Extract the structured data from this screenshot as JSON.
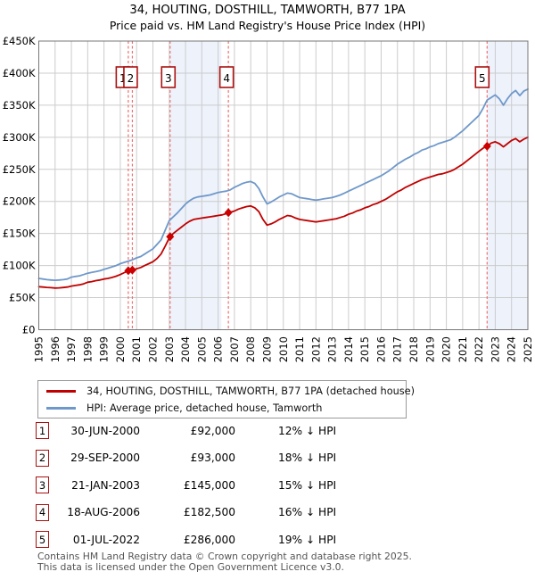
{
  "title": "34, HOUTING, DOSTHILL, TAMWORTH, B77 1PA",
  "subtitle": "Price paid vs. HM Land Registry's House Price Index (HPI)",
  "colors": {
    "property_line": "#c00000",
    "hpi_line": "#6f98ca",
    "event_dash": "#ee7070",
    "event_box_border": "#aa1111",
    "marker": "#cc0000",
    "band": "#edf2fb",
    "grid": "#cccccc",
    "plot_border": "#777777"
  },
  "chart_data": {
    "type": "line",
    "title": "34, HOUTING, DOSTHILL, TAMWORTH, B77 1PA — Price paid vs. HPI",
    "xlim": [
      1995,
      2025
    ],
    "ylim": [
      0,
      450000
    ],
    "x_start": 1995,
    "x_step_years": 0.25,
    "x_ticks": [
      1995,
      1996,
      1997,
      1998,
      1999,
      2000,
      2001,
      2002,
      2003,
      2004,
      2005,
      2006,
      2007,
      2008,
      2009,
      2010,
      2011,
      2012,
      2013,
      2014,
      2015,
      2016,
      2017,
      2018,
      2019,
      2020,
      2021,
      2022,
      2023,
      2024,
      2025
    ],
    "y_ticks": [
      "£450K",
      "£400K",
      "£350K",
      "£300K",
      "£250K",
      "£200K",
      "£150K",
      "£100K",
      "£50K",
      "£0"
    ],
    "grid": true,
    "legend_position": "below",
    "shaded_bands_years": [
      [
        2003.055,
        2006.2
      ],
      [
        2022.5,
        2025
      ]
    ],
    "series": [
      {
        "name": "34, HOUTING, DOSTHILL, TAMWORTH, B77 1PA (detached house)",
        "color": "#c00000",
        "values_k_gbp": [
          67,
          66.5,
          66,
          65.5,
          65,
          65.3,
          65.8,
          66.5,
          68,
          69,
          70,
          71.5,
          74,
          75,
          76.5,
          77.5,
          79,
          80,
          81.5,
          83.5,
          86,
          89,
          92,
          93,
          95,
          97,
          100,
          103,
          106,
          111,
          118,
          130,
          143,
          150,
          155,
          160,
          165,
          169,
          172,
          173,
          174,
          175,
          176,
          177,
          178,
          179,
          181,
          183,
          185,
          188,
          190,
          192,
          193,
          190,
          184,
          172,
          163,
          165,
          168,
          172,
          175,
          178,
          177,
          174,
          172,
          171,
          170,
          169,
          168,
          169,
          170,
          171,
          172,
          173,
          175,
          177,
          180,
          182,
          185,
          187,
          190,
          192,
          195,
          197,
          200,
          203,
          207,
          211,
          215,
          218,
          222,
          225,
          228,
          231,
          234,
          236,
          238,
          240,
          242,
          243,
          245,
          247,
          250,
          254,
          258,
          263,
          268,
          273,
          278,
          283,
          286,
          291,
          293,
          290,
          285,
          290,
          295,
          298,
          293,
          297,
          300
        ]
      },
      {
        "name": "HPI: Average price, detached house, Tamworth",
        "color": "#6f98ca",
        "values_k_gbp": [
          80,
          79,
          78,
          77.5,
          77,
          77.5,
          78,
          79,
          82,
          83,
          84,
          86,
          88,
          89.5,
          90.5,
          92,
          94,
          96,
          98,
          100,
          103,
          105,
          107,
          109,
          112,
          114,
          118,
          122,
          126,
          133,
          140,
          155,
          170,
          176,
          182,
          189,
          196,
          201,
          205,
          207,
          208,
          209,
          210,
          212,
          214,
          215,
          216,
          218,
          222,
          225,
          228,
          230,
          231,
          228,
          220,
          207,
          196,
          199,
          203,
          207,
          210,
          213,
          212,
          209,
          206,
          205,
          204,
          203,
          202,
          203,
          204,
          205,
          206,
          208,
          210,
          213,
          216,
          219,
          222,
          225,
          228,
          231,
          234,
          237,
          240,
          244,
          248,
          253,
          258,
          262,
          266,
          269,
          273,
          276,
          280,
          282,
          285,
          287,
          290,
          292,
          294,
          296,
          300,
          305,
          310,
          316,
          322,
          328,
          334,
          345,
          358,
          362,
          366,
          360,
          350,
          360,
          368,
          373,
          365,
          372,
          375
        ]
      }
    ],
    "events": [
      {
        "number": "1",
        "date": "30-JUN-2000",
        "year": 2000.49,
        "price": "£92,000",
        "price_k": 92,
        "vs_hpi": "12% ↓ HPI"
      },
      {
        "number": "2",
        "date": "29-SEP-2000",
        "year": 2000.74,
        "price": "£93,000",
        "price_k": 93,
        "vs_hpi": "18% ↓ HPI"
      },
      {
        "number": "3",
        "date": "21-JAN-2003",
        "year": 2003.055,
        "price": "£145,000",
        "price_k": 145,
        "vs_hpi": "15% ↓ HPI"
      },
      {
        "number": "4",
        "date": "18-AUG-2006",
        "year": 2006.63,
        "price": "£182,500",
        "price_k": 182.5,
        "vs_hpi": "16% ↓ HPI"
      },
      {
        "number": "5",
        "date": "01-JUL-2022",
        "year": 2022.5,
        "price": "£286,000",
        "price_k": 286,
        "vs_hpi": "19% ↓ HPI"
      }
    ]
  },
  "legend": {
    "items": [
      {
        "label": "34, HOUTING, DOSTHILL, TAMWORTH, B77 1PA (detached house)",
        "color": "#c00000"
      },
      {
        "label": "HPI: Average price, detached house, Tamworth",
        "color": "#6f98ca"
      }
    ]
  },
  "footer": {
    "line1": "Contains HM Land Registry data © Crown copyright and database right 2025.",
    "line2": "This data is licensed under the Open Government Licence v3.0."
  }
}
